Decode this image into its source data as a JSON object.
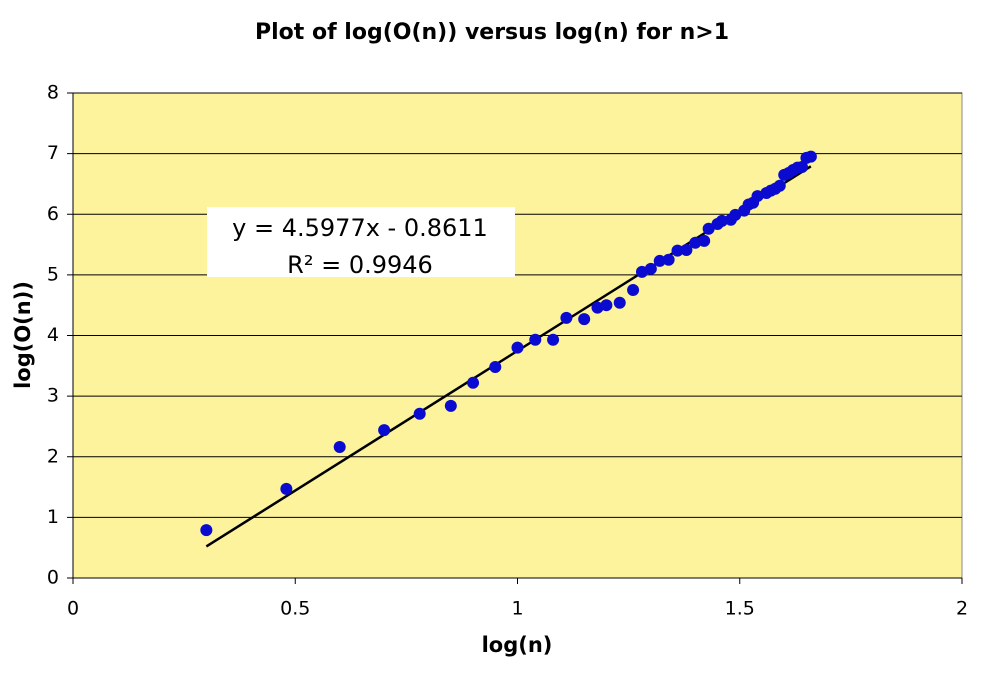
{
  "chart_data": {
    "type": "scatter",
    "title": "Plot of log(O(n)) versus log(n) for n>1",
    "x_label": "log(n)",
    "y_label": "log(O(n))",
    "annotations": [
      "y = 4.5977x - 0.8611",
      "R² = 0.9946"
    ],
    "xlim": [
      0,
      2
    ],
    "xticks": [
      0,
      0.5,
      1,
      1.5,
      2
    ],
    "ylim": [
      0,
      8
    ],
    "yticks": [
      0,
      1,
      2,
      3,
      4,
      5,
      6,
      7,
      8
    ],
    "grid": true,
    "background": "#fcf39c",
    "series": [
      {
        "color": "#0a0ad0",
        "x": [
          0.3,
          0.48,
          0.6,
          0.7,
          0.78,
          0.85,
          0.9,
          0.95,
          1.0,
          1.04,
          1.08,
          1.11,
          1.15,
          1.18,
          1.2,
          1.23,
          1.26,
          1.28,
          1.3,
          1.32,
          1.34,
          1.36,
          1.38,
          1.4,
          1.42,
          1.43,
          1.45,
          1.46,
          1.48,
          1.49,
          1.51,
          1.52,
          1.53,
          1.54,
          1.56,
          1.57,
          1.58,
          1.59,
          1.6,
          1.61,
          1.62,
          1.63,
          1.64,
          1.65,
          1.66
        ],
        "values": [
          0.79,
          1.47,
          2.16,
          2.44,
          2.71,
          2.84,
          3.22,
          3.48,
          3.8,
          3.93,
          3.93,
          4.29,
          4.27,
          4.46,
          4.5,
          4.54,
          4.75,
          5.05,
          5.1,
          5.23,
          5.25,
          5.4,
          5.41,
          5.53,
          5.56,
          5.76,
          5.84,
          5.89,
          5.91,
          5.99,
          6.06,
          6.16,
          6.19,
          6.3,
          6.35,
          6.39,
          6.42,
          6.47,
          6.65,
          6.68,
          6.73,
          6.77,
          6.78,
          6.93,
          6.95
        ]
      }
    ],
    "trendline": {
      "color": "#000000",
      "x": [
        0.3,
        1.66
      ],
      "values": [
        0.52,
        6.79
      ]
    }
  }
}
